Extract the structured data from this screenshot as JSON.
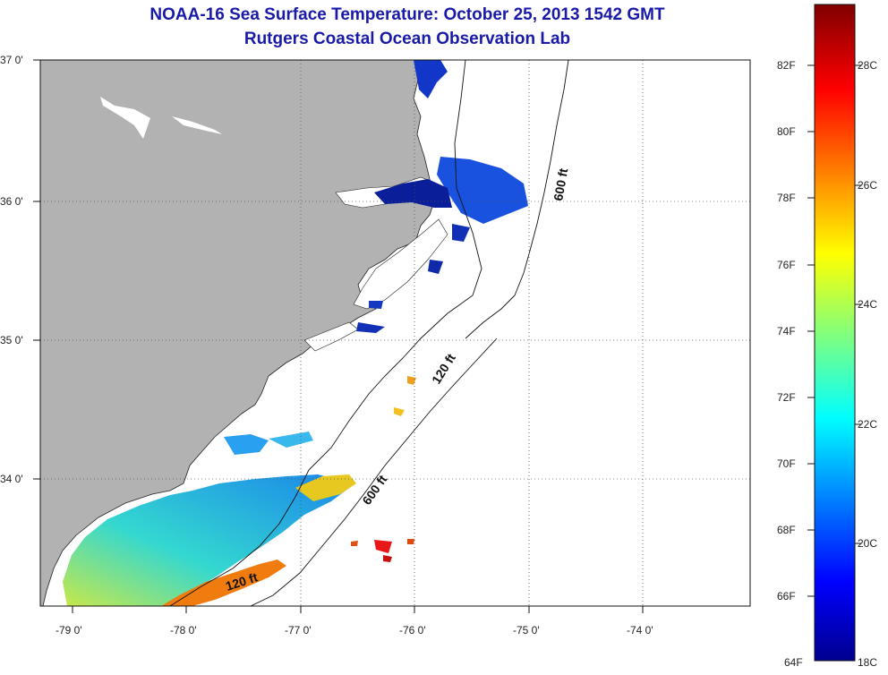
{
  "header": {
    "title": "NOAA-16 Sea Surface Temperature:  October 25, 2013 1542 GMT",
    "subtitle": "Rutgers Coastal Ocean Observation Lab"
  },
  "map": {
    "lat_labels": [
      "37 0'",
      "36 0'",
      "35 0'",
      "34 0'"
    ],
    "lon_labels": [
      "-79 0'",
      "-78 0'",
      "-77 0'",
      "-76 0'",
      "-75 0'",
      "-74 0'"
    ],
    "isobaths": [
      "600 ft",
      "120 ft",
      "600 ft",
      "120 ft"
    ],
    "colors": {
      "land": "#b2b2b2",
      "ocean_nodata": "#ffffff"
    }
  },
  "colorbar": {
    "fahrenheit": [
      "82F",
      "80F",
      "78F",
      "76F",
      "74F",
      "72F",
      "70F",
      "68F",
      "66F",
      "64F"
    ],
    "celsius": [
      "28C",
      "26C",
      "24C",
      "22C",
      "20C",
      "18C"
    ],
    "range_c": [
      18,
      29.3
    ],
    "colors": [
      "#00008f",
      "#0000ff",
      "#00ffff",
      "#ffff00",
      "#ff0000",
      "#800000"
    ]
  }
}
